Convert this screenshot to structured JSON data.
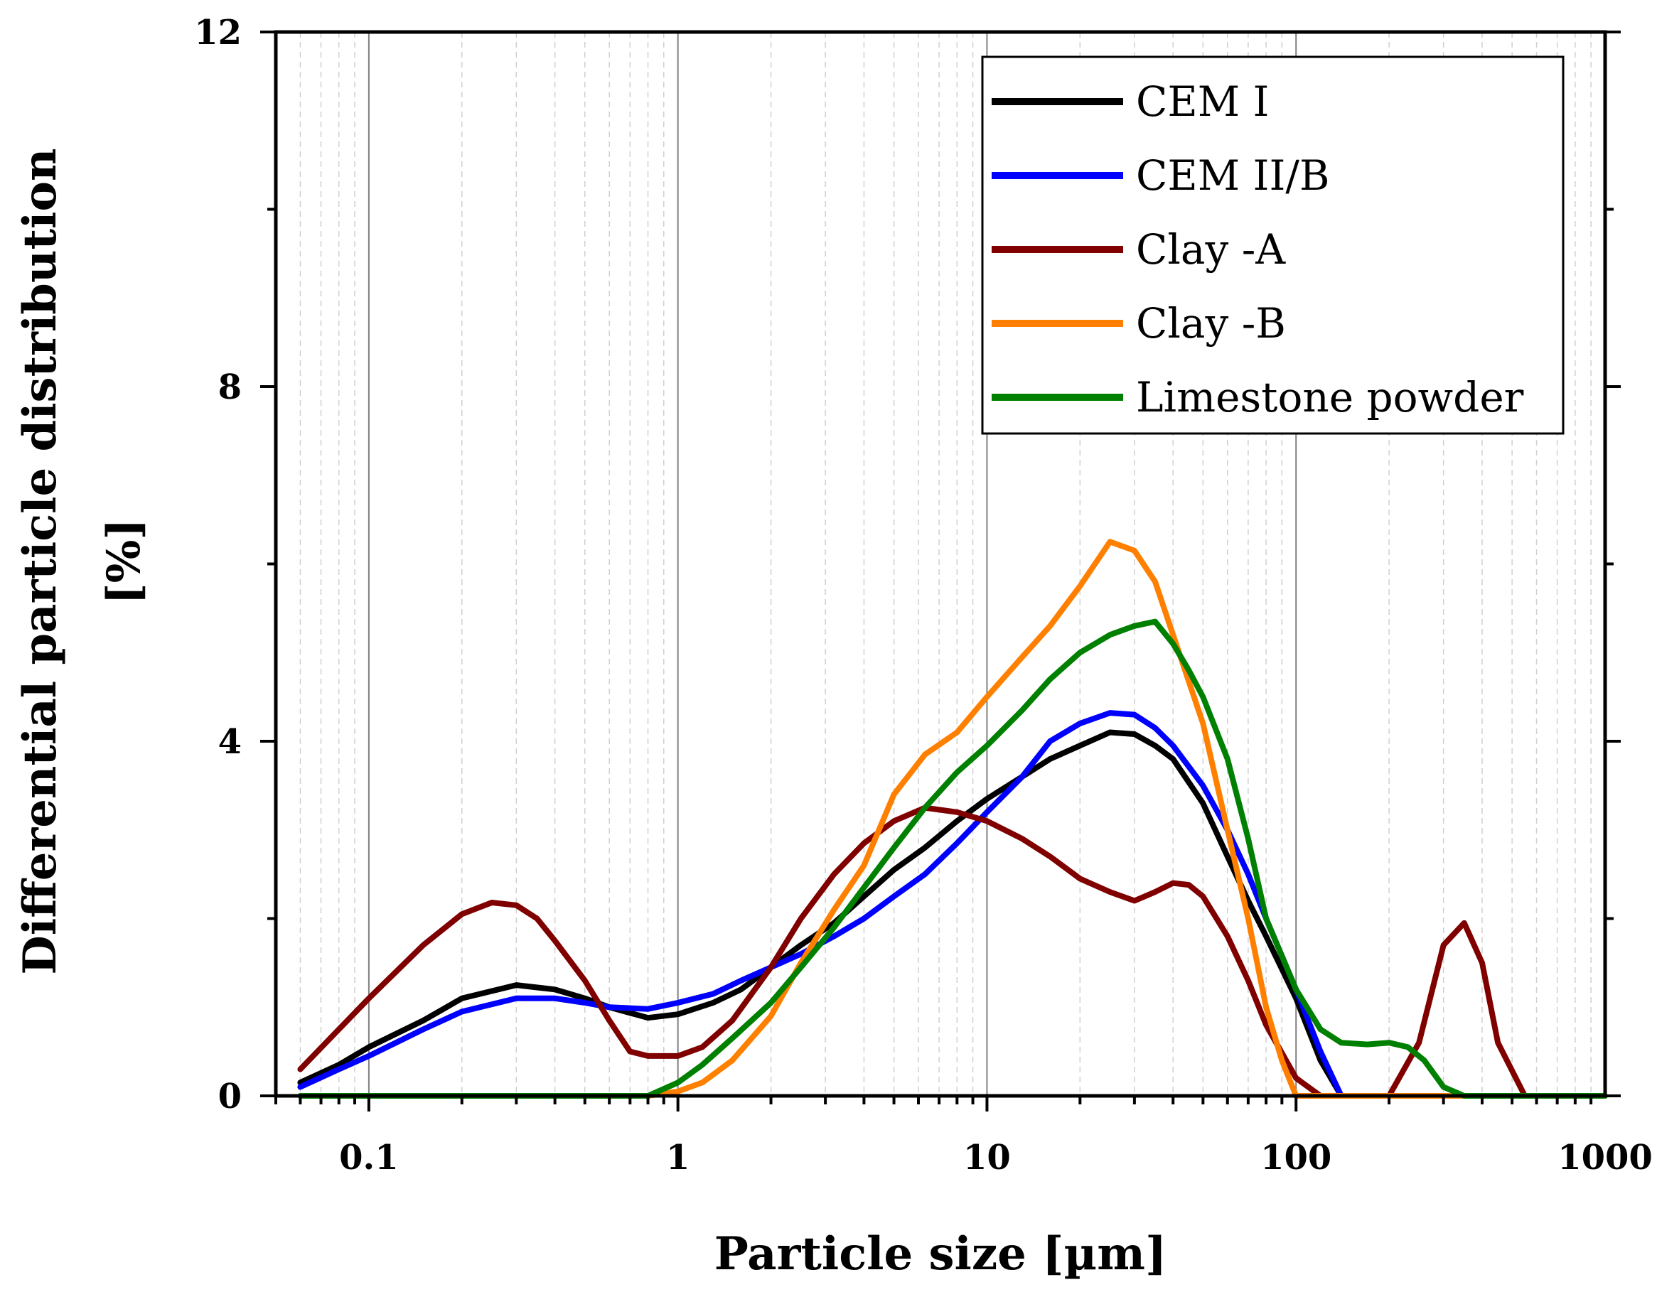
{
  "chart_data": {
    "type": "line",
    "xscale": "log",
    "xlim": [
      0.05,
      1000
    ],
    "ylim": [
      0,
      12
    ],
    "xticks": [
      0.1,
      1,
      10,
      100,
      1000
    ],
    "xtick_labels": [
      "0.1",
      "1",
      "10",
      "100",
      "1000"
    ],
    "yticks": [
      0,
      4,
      8,
      12
    ],
    "ytick_labels": [
      "0",
      "4",
      "8",
      "12"
    ],
    "xlabel": "Particle size [µm]",
    "ylabel": [
      "Differential particle distribution",
      "[%]"
    ],
    "grid": "vertical, log minor lines dashed",
    "legend_position": "top-right",
    "series": [
      {
        "name": "CEM I",
        "color": "#000000",
        "points": [
          [
            0.06,
            0.15
          ],
          [
            0.08,
            0.35
          ],
          [
            0.1,
            0.55
          ],
          [
            0.15,
            0.85
          ],
          [
            0.2,
            1.1
          ],
          [
            0.3,
            1.25
          ],
          [
            0.4,
            1.2
          ],
          [
            0.5,
            1.1
          ],
          [
            0.6,
            1.0
          ],
          [
            0.8,
            0.88
          ],
          [
            1.0,
            0.92
          ],
          [
            1.3,
            1.05
          ],
          [
            1.6,
            1.2
          ],
          [
            2.0,
            1.45
          ],
          [
            2.5,
            1.7
          ],
          [
            3.2,
            1.95
          ],
          [
            4.0,
            2.25
          ],
          [
            5.0,
            2.55
          ],
          [
            6.3,
            2.8
          ],
          [
            8.0,
            3.1
          ],
          [
            10,
            3.35
          ],
          [
            13,
            3.6
          ],
          [
            16,
            3.8
          ],
          [
            20,
            3.95
          ],
          [
            25,
            4.1
          ],
          [
            30,
            4.08
          ],
          [
            35,
            3.95
          ],
          [
            40,
            3.8
          ],
          [
            50,
            3.3
          ],
          [
            60,
            2.7
          ],
          [
            70,
            2.2
          ],
          [
            80,
            1.8
          ],
          [
            100,
            1.1
          ],
          [
            120,
            0.4
          ],
          [
            140,
            0.0
          ]
        ]
      },
      {
        "name": "CEM II/B",
        "color": "#0000ff",
        "points": [
          [
            0.06,
            0.1
          ],
          [
            0.08,
            0.3
          ],
          [
            0.1,
            0.45
          ],
          [
            0.15,
            0.75
          ],
          [
            0.2,
            0.95
          ],
          [
            0.3,
            1.1
          ],
          [
            0.4,
            1.1
          ],
          [
            0.5,
            1.05
          ],
          [
            0.6,
            1.0
          ],
          [
            0.8,
            0.98
          ],
          [
            1.0,
            1.05
          ],
          [
            1.3,
            1.15
          ],
          [
            1.6,
            1.3
          ],
          [
            2.0,
            1.45
          ],
          [
            2.5,
            1.6
          ],
          [
            3.2,
            1.8
          ],
          [
            4.0,
            2.0
          ],
          [
            5.0,
            2.25
          ],
          [
            6.3,
            2.5
          ],
          [
            8.0,
            2.85
          ],
          [
            10,
            3.2
          ],
          [
            13,
            3.6
          ],
          [
            16,
            4.0
          ],
          [
            20,
            4.2
          ],
          [
            25,
            4.32
          ],
          [
            30,
            4.3
          ],
          [
            35,
            4.15
          ],
          [
            40,
            3.95
          ],
          [
            50,
            3.5
          ],
          [
            60,
            3.0
          ],
          [
            70,
            2.5
          ],
          [
            80,
            2.0
          ],
          [
            100,
            1.2
          ],
          [
            120,
            0.5
          ],
          [
            140,
            0.0
          ]
        ]
      },
      {
        "name": "Clay -A",
        "color": "#800000",
        "points": [
          [
            0.06,
            0.3
          ],
          [
            0.08,
            0.75
          ],
          [
            0.1,
            1.1
          ],
          [
            0.15,
            1.7
          ],
          [
            0.2,
            2.05
          ],
          [
            0.25,
            2.18
          ],
          [
            0.3,
            2.15
          ],
          [
            0.35,
            2.0
          ],
          [
            0.4,
            1.75
          ],
          [
            0.5,
            1.3
          ],
          [
            0.6,
            0.85
          ],
          [
            0.7,
            0.5
          ],
          [
            0.8,
            0.45
          ],
          [
            1.0,
            0.45
          ],
          [
            1.2,
            0.55
          ],
          [
            1.5,
            0.85
          ],
          [
            2.0,
            1.45
          ],
          [
            2.5,
            2.0
          ],
          [
            3.2,
            2.5
          ],
          [
            4.0,
            2.85
          ],
          [
            5.0,
            3.1
          ],
          [
            6.3,
            3.25
          ],
          [
            8.0,
            3.2
          ],
          [
            10,
            3.1
          ],
          [
            13,
            2.9
          ],
          [
            16,
            2.7
          ],
          [
            20,
            2.45
          ],
          [
            25,
            2.3
          ],
          [
            30,
            2.2
          ],
          [
            35,
            2.3
          ],
          [
            40,
            2.4
          ],
          [
            45,
            2.38
          ],
          [
            50,
            2.25
          ],
          [
            60,
            1.8
          ],
          [
            70,
            1.3
          ],
          [
            80,
            0.8
          ],
          [
            100,
            0.2
          ],
          [
            120,
            0.0
          ],
          [
            150,
            0.0
          ],
          [
            200,
            0.0
          ],
          [
            250,
            0.6
          ],
          [
            300,
            1.7
          ],
          [
            350,
            1.95
          ],
          [
            400,
            1.5
          ],
          [
            450,
            0.6
          ],
          [
            550,
            0.0
          ]
        ]
      },
      {
        "name": "Clay -B",
        "color": "#ff8000",
        "points": [
          [
            0.06,
            0.0
          ],
          [
            0.5,
            0.0
          ],
          [
            0.8,
            0.0
          ],
          [
            1.0,
            0.05
          ],
          [
            1.2,
            0.15
          ],
          [
            1.5,
            0.4
          ],
          [
            2.0,
            0.9
          ],
          [
            2.5,
            1.5
          ],
          [
            3.2,
            2.1
          ],
          [
            4.0,
            2.6
          ],
          [
            5.0,
            3.4
          ],
          [
            6.3,
            3.85
          ],
          [
            8.0,
            4.1
          ],
          [
            10,
            4.5
          ],
          [
            13,
            4.95
          ],
          [
            16,
            5.3
          ],
          [
            20,
            5.75
          ],
          [
            25,
            6.25
          ],
          [
            30,
            6.15
          ],
          [
            35,
            5.8
          ],
          [
            40,
            5.2
          ],
          [
            50,
            4.2
          ],
          [
            60,
            3.0
          ],
          [
            70,
            2.0
          ],
          [
            80,
            1.0
          ],
          [
            90,
            0.4
          ],
          [
            100,
            0.0
          ],
          [
            1000,
            0.0
          ]
        ]
      },
      {
        "name": "Limestone powder",
        "color": "#008000",
        "points": [
          [
            0.06,
            0.0
          ],
          [
            0.5,
            0.0
          ],
          [
            0.8,
            0.0
          ],
          [
            1.0,
            0.15
          ],
          [
            1.2,
            0.35
          ],
          [
            1.5,
            0.65
          ],
          [
            2.0,
            1.05
          ],
          [
            2.5,
            1.45
          ],
          [
            3.2,
            1.9
          ],
          [
            4.0,
            2.35
          ],
          [
            5.0,
            2.8
          ],
          [
            6.3,
            3.25
          ],
          [
            8.0,
            3.65
          ],
          [
            10,
            3.95
          ],
          [
            13,
            4.35
          ],
          [
            16,
            4.7
          ],
          [
            20,
            5.0
          ],
          [
            25,
            5.2
          ],
          [
            30,
            5.3
          ],
          [
            35,
            5.35
          ],
          [
            40,
            5.1
          ],
          [
            45,
            4.8
          ],
          [
            50,
            4.5
          ],
          [
            60,
            3.8
          ],
          [
            70,
            2.9
          ],
          [
            80,
            2.0
          ],
          [
            100,
            1.2
          ],
          [
            120,
            0.75
          ],
          [
            140,
            0.6
          ],
          [
            170,
            0.58
          ],
          [
            200,
            0.6
          ],
          [
            230,
            0.55
          ],
          [
            260,
            0.4
          ],
          [
            300,
            0.1
          ],
          [
            350,
            0.0
          ],
          [
            1000,
            0.0
          ]
        ]
      }
    ]
  }
}
